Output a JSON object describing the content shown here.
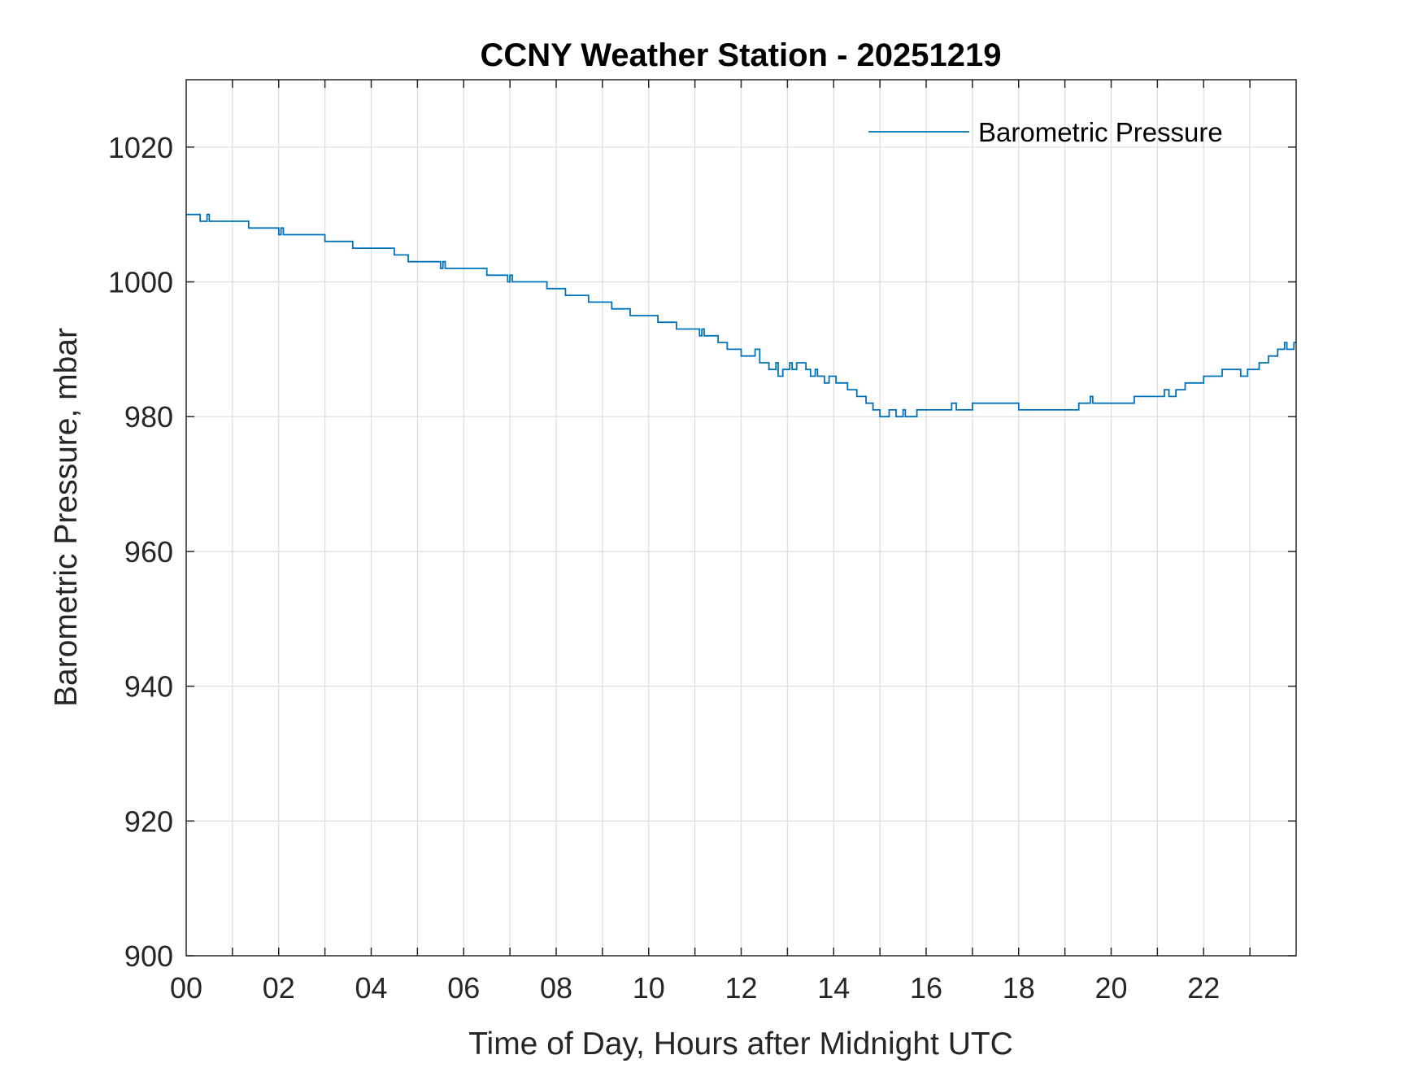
{
  "chart_data": {
    "type": "line",
    "title": "CCNY Weather Station - 20251219",
    "xlabel": "Time of Day, Hours after Midnight UTC",
    "ylabel": "Barometric Pressure, mbar",
    "xlim": [
      0,
      24
    ],
    "ylim": [
      900,
      1030
    ],
    "x_ticks": [
      0,
      2,
      4,
      6,
      8,
      10,
      12,
      14,
      16,
      18,
      20,
      22
    ],
    "x_tick_labels": [
      "00",
      "02",
      "04",
      "06",
      "08",
      "10",
      "12",
      "14",
      "16",
      "18",
      "20",
      "22"
    ],
    "x_minor_grid_step": 1,
    "y_ticks": [
      900,
      920,
      940,
      960,
      980,
      1000,
      1020
    ],
    "y_tick_labels": [
      "900",
      "920",
      "940",
      "960",
      "980",
      "1000",
      "1020"
    ],
    "grid": true,
    "legend_position": "top-right",
    "series": [
      {
        "name": "Barometric Pressure",
        "color": "#0072BD",
        "style": "step",
        "x": [
          0.0,
          0.3,
          0.45,
          0.5,
          0.55,
          1.3,
          1.35,
          1.4,
          2.0,
          2.05,
          2.1,
          2.3,
          3.0,
          3.6,
          4.5,
          4.8,
          5.5,
          5.55,
          5.6,
          6.5,
          6.95,
          7.0,
          7.05,
          7.8,
          8.2,
          8.7,
          9.2,
          9.6,
          10.2,
          10.6,
          11.1,
          11.15,
          11.2,
          11.5,
          11.7,
          12.0,
          12.3,
          12.4,
          12.6,
          12.75,
          12.8,
          12.9,
          13.05,
          13.1,
          13.2,
          13.4,
          13.5,
          13.6,
          13.65,
          13.8,
          13.9,
          14.05,
          14.3,
          14.5,
          14.7,
          14.85,
          15.0,
          15.2,
          15.35,
          15.5,
          15.55,
          15.8,
          16.4,
          16.55,
          16.65,
          17.0,
          18.0,
          19.3,
          19.55,
          19.6,
          20.5,
          21.0,
          21.15,
          21.25,
          21.4,
          21.6,
          22.0,
          22.4,
          22.75,
          22.8,
          22.95,
          23.2,
          23.4,
          23.6,
          23.75,
          23.8,
          23.95
        ],
        "values": [
          1010,
          1009,
          1010,
          1009,
          1009,
          1009,
          1008,
          1008,
          1007,
          1008,
          1007,
          1007,
          1006,
          1005,
          1004,
          1003,
          1002,
          1003,
          1002,
          1001,
          1000,
          1001,
          1000,
          999,
          998,
          997,
          996,
          995,
          994,
          993,
          992,
          993,
          992,
          991,
          990,
          989,
          990,
          988,
          987,
          988,
          986,
          987,
          988,
          987,
          988,
          987,
          986,
          987,
          986,
          985,
          986,
          985,
          984,
          983,
          982,
          981,
          980,
          981,
          980,
          981,
          980,
          981,
          981,
          982,
          981,
          982,
          981,
          982,
          983,
          982,
          983,
          983,
          984,
          983,
          984,
          985,
          986,
          987,
          987,
          986,
          987,
          988,
          989,
          990,
          991,
          990,
          991
        ]
      }
    ]
  }
}
